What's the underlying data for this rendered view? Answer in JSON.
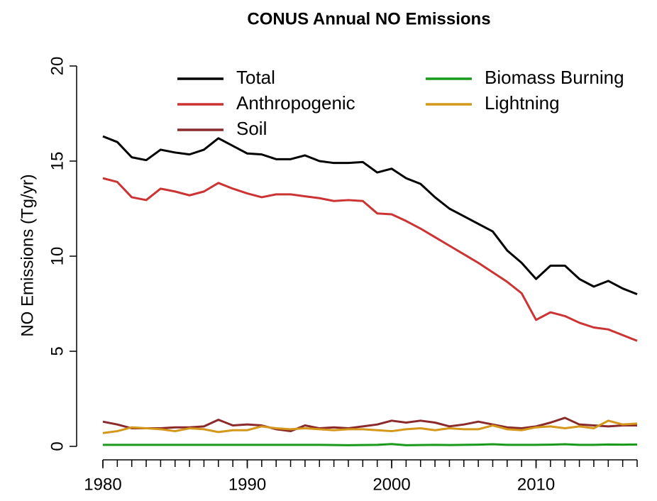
{
  "chart_data": {
    "type": "line",
    "title": "CONUS Annual NO Emissions",
    "y_label": "NO Emissions (Tg/yr)",
    "x": [
      1980,
      1981,
      1982,
      1983,
      1984,
      1985,
      1986,
      1987,
      1988,
      1989,
      1990,
      1991,
      1992,
      1993,
      1994,
      1995,
      1996,
      1997,
      1998,
      1999,
      2000,
      2001,
      2002,
      2003,
      2004,
      2005,
      2006,
      2007,
      2008,
      2009,
      2010,
      2011,
      2012,
      2013,
      2014,
      2015,
      2016,
      2017
    ],
    "series": [
      {
        "name": "Total",
        "color": "#000000",
        "values": [
          16.3,
          16.0,
          15.2,
          15.05,
          15.6,
          15.45,
          15.35,
          15.6,
          16.2,
          15.8,
          15.4,
          15.35,
          15.1,
          15.1,
          15.3,
          15.0,
          14.9,
          14.9,
          14.95,
          14.4,
          14.6,
          14.1,
          13.8,
          13.1,
          12.5,
          12.1,
          11.7,
          11.3,
          10.3,
          9.65,
          8.8,
          9.5,
          9.5,
          8.8,
          8.4,
          8.7,
          8.3,
          8.0
        ]
      },
      {
        "name": "Anthropogenic",
        "color": "#cc3333",
        "values": [
          14.1,
          13.9,
          13.1,
          12.95,
          13.55,
          13.4,
          13.2,
          13.4,
          13.85,
          13.55,
          13.3,
          13.1,
          13.25,
          13.25,
          13.15,
          13.05,
          12.9,
          12.95,
          12.9,
          12.25,
          12.2,
          11.85,
          11.45,
          11.0,
          10.55,
          10.1,
          9.65,
          9.15,
          8.65,
          8.05,
          6.65,
          7.05,
          6.85,
          6.5,
          6.25,
          6.15,
          5.85,
          5.55
        ]
      },
      {
        "name": "Soil",
        "color": "#8b2a2a",
        "values": [
          1.3,
          1.15,
          0.95,
          0.95,
          0.95,
          1.0,
          1.0,
          1.05,
          1.4,
          1.1,
          1.15,
          1.1,
          0.9,
          0.8,
          1.1,
          0.95,
          1.0,
          0.95,
          1.05,
          1.15,
          1.35,
          1.25,
          1.35,
          1.25,
          1.05,
          1.15,
          1.3,
          1.15,
          1.0,
          0.95,
          1.05,
          1.25,
          1.5,
          1.15,
          1.1,
          1.05,
          1.1,
          1.1
        ]
      },
      {
        "name": "Biomass Burning",
        "color": "#1a9a1a",
        "values": [
          0.08,
          0.08,
          0.08,
          0.08,
          0.08,
          0.08,
          0.08,
          0.08,
          0.08,
          0.08,
          0.08,
          0.08,
          0.08,
          0.08,
          0.08,
          0.08,
          0.07,
          0.06,
          0.07,
          0.08,
          0.12,
          0.06,
          0.07,
          0.08,
          0.07,
          0.08,
          0.09,
          0.11,
          0.08,
          0.08,
          0.08,
          0.09,
          0.11,
          0.08,
          0.08,
          0.1,
          0.09,
          0.1
        ]
      },
      {
        "name": "Lightning",
        "color": "#d4971a",
        "values": [
          0.7,
          0.8,
          1.0,
          0.95,
          0.9,
          0.8,
          0.95,
          0.9,
          0.75,
          0.85,
          0.85,
          1.05,
          0.95,
          0.9,
          0.95,
          0.9,
          0.85,
          0.9,
          0.9,
          0.85,
          0.8,
          0.9,
          0.95,
          0.85,
          0.95,
          0.9,
          0.9,
          1.1,
          0.9,
          0.85,
          1.0,
          1.05,
          0.95,
          1.05,
          0.95,
          1.35,
          1.15,
          1.2
        ]
      }
    ],
    "xlim": [
      1980,
      2017
    ],
    "xticks": [
      1980,
      1990,
      2000,
      2010
    ],
    "ylim": [
      0,
      20
    ],
    "yticks": [
      0,
      5,
      10,
      15,
      20
    ],
    "grid": false
  }
}
